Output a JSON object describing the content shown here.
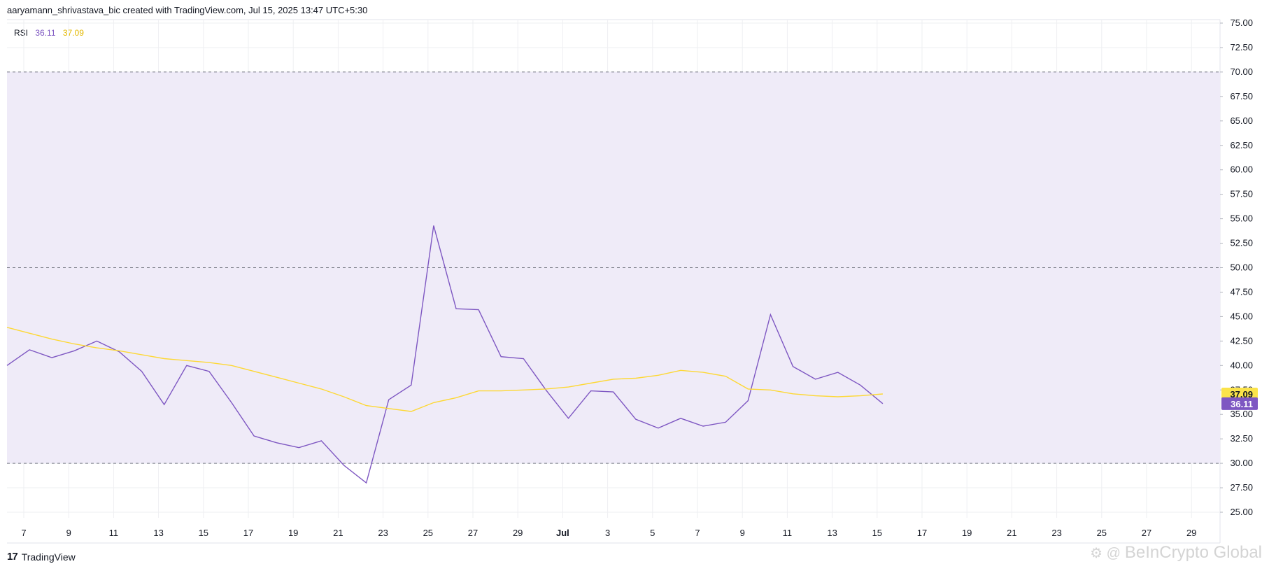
{
  "header": {
    "text": "aaryamann_shrivastava_bic created with TradingView.com, Jul 15, 2025 13:47 UTC+5:30"
  },
  "legend": {
    "indicator": "RSI",
    "rsi_value": "36.11",
    "ma_value": "37.09"
  },
  "footer": {
    "logo_text": "TradingView",
    "logo_mark": "17"
  },
  "watermark": {
    "text": "BeInCrypto Global"
  },
  "colors": {
    "rsi": "#7e57c2",
    "ma": "#fdd835",
    "band": "#efebf8",
    "grid": "#eeeff2",
    "dashed": "#787b86"
  },
  "chart_data": {
    "type": "line",
    "y_ticks": [
      "75.00",
      "72.50",
      "70.00",
      "67.50",
      "65.00",
      "62.50",
      "60.00",
      "57.50",
      "55.00",
      "52.50",
      "50.00",
      "47.50",
      "45.00",
      "42.50",
      "40.00",
      "37.50",
      "35.00",
      "32.50",
      "30.00",
      "27.50",
      "25.00"
    ],
    "x_tick_labels": [
      "7",
      "9",
      "11",
      "13",
      "15",
      "17",
      "19",
      "21",
      "23",
      "25",
      "27",
      "29",
      "Jul",
      "3",
      "5",
      "7",
      "9",
      "11",
      "13",
      "15",
      "17",
      "19",
      "21",
      "23",
      "25",
      "27",
      "29"
    ],
    "x_ticks_day_index": [
      0,
      2,
      4,
      6,
      8,
      10,
      12,
      14,
      16,
      18,
      20,
      22,
      24,
      26,
      28,
      30,
      32,
      34,
      36,
      38,
      40,
      42,
      44,
      46,
      48,
      50,
      52
    ],
    "x_dates": [
      "Jun 6",
      "Jun 7",
      "Jun 8",
      "Jun 9",
      "Jun 10",
      "Jun 11",
      "Jun 12",
      "Jun 13",
      "Jun 14",
      "Jun 15",
      "Jun 16",
      "Jun 17",
      "Jun 18",
      "Jun 19",
      "Jun 20",
      "Jun 21",
      "Jun 22",
      "Jun 23",
      "Jun 24",
      "Jun 25",
      "Jun 26",
      "Jun 27",
      "Jun 28",
      "Jun 29",
      "Jun 30",
      "Jul 1",
      "Jul 2",
      "Jul 3",
      "Jul 4",
      "Jul 5",
      "Jul 6",
      "Jul 7",
      "Jul 8",
      "Jul 9",
      "Jul 10",
      "Jul 11",
      "Jul 12",
      "Jul 13",
      "Jul 14",
      "Jul 15"
    ],
    "x_range_dates": [
      "Jun 6",
      "Jul 30"
    ],
    "ylim": [
      23.0,
      76.0
    ],
    "band": [
      30,
      70
    ],
    "mid_line": 50,
    "series": [
      {
        "name": "RSI",
        "color": "#7e57c2",
        "last_value": "36.11",
        "values": [
          40.0,
          41.6,
          40.8,
          41.5,
          42.5,
          41.4,
          39.4,
          36.0,
          40.0,
          39.4,
          36.2,
          32.8,
          32.1,
          31.6,
          32.3,
          29.8,
          28.0,
          36.5,
          38.0,
          54.3,
          45.8,
          45.7,
          40.9,
          40.7,
          37.5,
          34.6,
          37.4,
          37.3,
          34.5,
          33.6,
          34.6,
          33.8,
          34.2,
          36.4,
          45.2,
          39.9,
          38.6,
          39.3,
          38.0,
          36.1
        ]
      },
      {
        "name": "RSI-based MA",
        "color": "#fdd835",
        "last_value": "37.09",
        "values": [
          43.9,
          43.3,
          42.7,
          42.2,
          41.8,
          41.5,
          41.1,
          40.7,
          40.5,
          40.3,
          40.0,
          39.4,
          38.8,
          38.2,
          37.6,
          36.8,
          35.9,
          35.6,
          35.3,
          36.2,
          36.7,
          37.4,
          37.4,
          37.5,
          37.6,
          37.8,
          38.2,
          38.6,
          38.7,
          39.0,
          39.5,
          39.3,
          38.9,
          37.6,
          37.5,
          37.1,
          36.9,
          36.8,
          36.9,
          37.09
        ]
      }
    ]
  }
}
